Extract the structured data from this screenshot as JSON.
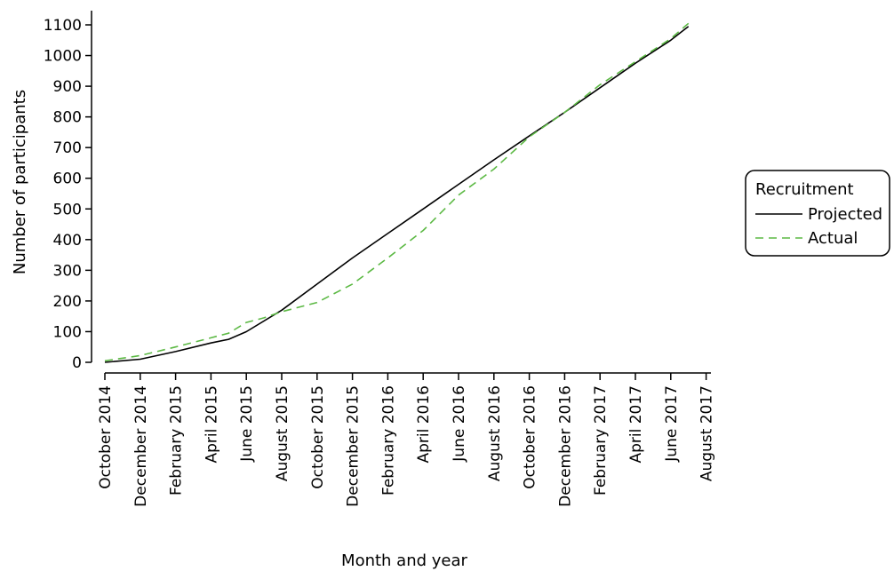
{
  "chart_data": {
    "type": "line",
    "xlabel": "Month and year",
    "ylabel": "Number of participants",
    "ylim": [
      0,
      1100
    ],
    "yticks": [
      0,
      100,
      200,
      300,
      400,
      500,
      600,
      700,
      800,
      900,
      1000,
      1100
    ],
    "categories": [
      "October 2014",
      "December 2014",
      "February 2015",
      "April 2015",
      "June 2015",
      "August 2015",
      "October 2015",
      "December 2015",
      "February 2016",
      "April 2016",
      "June 2016",
      "August 2016",
      "October 2016",
      "December 2016",
      "February 2017",
      "April 2017",
      "June 2017",
      "August 2017"
    ],
    "legend": {
      "title": "Recruitment",
      "placement": "right"
    },
    "series": [
      {
        "name": "Projected",
        "color": "#000000",
        "style": "solid",
        "points": [
          [
            0,
            0
          ],
          [
            1,
            10
          ],
          [
            2,
            35
          ],
          [
            3,
            63
          ],
          [
            3.5,
            75
          ],
          [
            4,
            100
          ],
          [
            5,
            170
          ],
          [
            6,
            255
          ],
          [
            7,
            340
          ],
          [
            8,
            420
          ],
          [
            9,
            500
          ],
          [
            10,
            580
          ],
          [
            11,
            660
          ],
          [
            12,
            738
          ],
          [
            13,
            815
          ],
          [
            14,
            895
          ],
          [
            15,
            975
          ],
          [
            16,
            1050
          ],
          [
            16.5,
            1095
          ]
        ]
      },
      {
        "name": "Actual",
        "color": "#5cb944",
        "style": "dashed",
        "points": [
          [
            0,
            5
          ],
          [
            1,
            22
          ],
          [
            2,
            50
          ],
          [
            3,
            80
          ],
          [
            3.5,
            95
          ],
          [
            4,
            130
          ],
          [
            4.5,
            145
          ],
          [
            5,
            165
          ],
          [
            6,
            195
          ],
          [
            7,
            255
          ],
          [
            8,
            340
          ],
          [
            9,
            430
          ],
          [
            10,
            545
          ],
          [
            11,
            630
          ],
          [
            12,
            735
          ],
          [
            13,
            815
          ],
          [
            14,
            905
          ],
          [
            15,
            980
          ],
          [
            16,
            1055
          ],
          [
            16.5,
            1105
          ]
        ]
      }
    ]
  }
}
